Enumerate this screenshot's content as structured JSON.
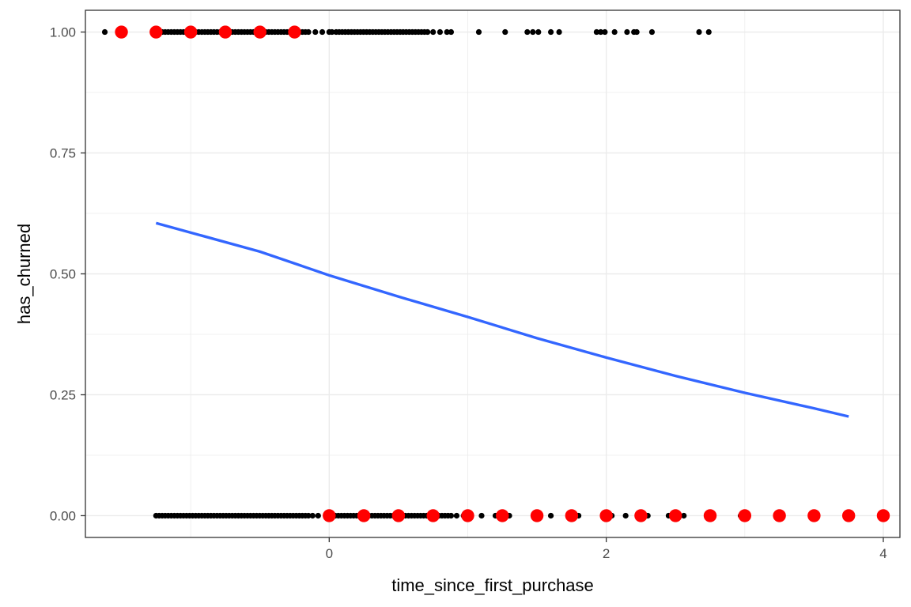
{
  "chart_data": {
    "type": "scatter",
    "title": "",
    "xlabel": "time_since_first_purchase",
    "ylabel": "has_churned",
    "xlim": [
      -1.76,
      4.12
    ],
    "ylim": [
      -0.045,
      1.045
    ],
    "x_ticks": [
      0,
      2,
      4
    ],
    "x_tick_labels": [
      "0",
      "2",
      "4"
    ],
    "y_ticks": [
      0,
      0.25,
      0.5,
      0.75,
      1
    ],
    "y_tick_labels": [
      "0.00",
      "0.25",
      "0.50",
      "0.75",
      "1.00"
    ],
    "grid": true,
    "legend": "none",
    "colors": {
      "observed": "#000000",
      "prediction": "#ff0000",
      "trend": "#3366ff",
      "grid": "#ebebeb",
      "panel_border": "#333333"
    },
    "observed_points": {
      "churned_1": {
        "y": 1,
        "dense_ranges": [
          [
            -1.25,
            -0.15
          ],
          [
            0.05,
            0.72
          ]
        ],
        "x": [
          -1.62,
          -0.1,
          -0.05,
          0.0,
          0.02,
          0.75,
          0.8,
          0.85,
          0.88,
          1.08,
          1.27,
          1.43,
          1.47,
          1.51,
          1.6,
          1.66,
          1.93,
          1.96,
          1.99,
          2.06,
          2.15,
          2.2,
          2.22,
          2.33,
          2.67,
          2.74
        ]
      },
      "churned_0": {
        "y": 0,
        "dense_ranges": [
          [
            -1.25,
            -0.15
          ],
          [
            0.0,
            0.88
          ]
        ],
        "x": [
          -0.12,
          -0.08,
          0.92,
          0.97,
          1.1,
          1.2,
          1.3,
          1.5,
          1.6,
          1.8,
          1.98,
          2.04,
          2.14,
          2.3,
          2.45,
          2.56,
          2.97,
          3.24
        ]
      }
    },
    "trend_line": {
      "x": [
        -1.25,
        -0.5,
        0.0,
        0.5,
        1.0,
        1.5,
        2.0,
        2.5,
        3.0,
        3.5,
        3.75
      ],
      "y": [
        0.605,
        0.546,
        0.497,
        0.453,
        0.411,
        0.367,
        0.327,
        0.289,
        0.254,
        0.222,
        0.205
      ]
    },
    "prediction_points": {
      "churned_1": {
        "y": 1,
        "x": [
          -1.5,
          -1.25,
          -1.0,
          -0.75,
          -0.5,
          -0.25
        ]
      },
      "churned_0": {
        "y": 0,
        "x": [
          0.0,
          0.25,
          0.5,
          0.75,
          1.0,
          1.25,
          1.5,
          1.75,
          2.0,
          2.25,
          2.5,
          2.75,
          3.0,
          3.25,
          3.5,
          3.75,
          4.0
        ]
      }
    }
  }
}
